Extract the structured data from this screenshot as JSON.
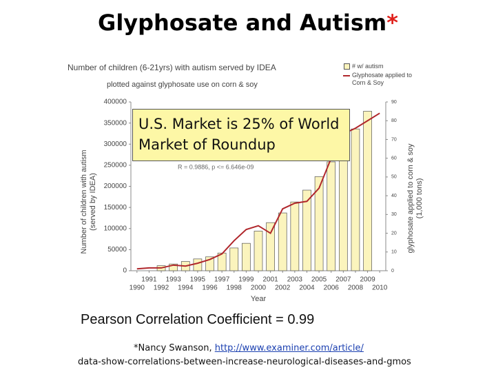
{
  "slide": {
    "title": "Glyphosate and Autism",
    "title_mark": "*",
    "callout": "U.S. Market is 25% of World Market of Roundup",
    "pearson": "Pearson Correlation Coefficient = 0.99",
    "citation_prefix": "*Nancy Swanson, ",
    "citation_link": "http://www.examiner.com/article/",
    "citation_line2": "data-show-correlations-between-increase-neurological-diseases-and-gmos"
  },
  "chart_data": {
    "type": "bar",
    "title": "Number of children (6-21yrs) with autism served by IDEA",
    "subtitle": "plotted against glyphosate use on corn & soy",
    "annotation": "R = 0.9886, p <= 6.646e-09",
    "xlabel": "Year",
    "ylabel": [
      "Number of children with autism",
      "(served by IDEA)"
    ],
    "y2label": [
      "glyphosate applied to corn & soy",
      "(1,000 tons)"
    ],
    "categories": [
      "1990",
      "1991",
      "1992",
      "1993",
      "1994",
      "1995",
      "1996",
      "1997",
      "1998",
      "1999",
      "2000",
      "2001",
      "2002",
      "2003",
      "2004",
      "2005",
      "2006",
      "2007",
      "2008",
      "2009",
      "2010"
    ],
    "series": [
      {
        "name": "# w/ autism",
        "type": "bar",
        "color": "#fbf4bd",
        "values": [
          null,
          null,
          12000,
          16000,
          22000,
          28000,
          33000,
          42000,
          54000,
          65000,
          94000,
          114000,
          137000,
          163000,
          191000,
          223000,
          258000,
          297000,
          336000,
          378000,
          null
        ]
      },
      {
        "name": "Glyphosate applied to Corn & Soy",
        "type": "line",
        "color": "#b0262b",
        "axis": "y2",
        "values": [
          1,
          1.5,
          1.5,
          3,
          2.5,
          4,
          6,
          9,
          16,
          22,
          24,
          20,
          33,
          36,
          37,
          44,
          60,
          73,
          76,
          80,
          84
        ]
      }
    ],
    "ylim": [
      0,
      400000
    ],
    "yticks": [
      0,
      50000,
      100000,
      150000,
      200000,
      250000,
      300000,
      350000,
      400000
    ],
    "y2lim": [
      0,
      90
    ],
    "y2ticks": [
      0,
      10,
      20,
      30,
      40,
      50,
      60,
      70,
      80,
      90
    ],
    "grid": false,
    "legend": "top-right"
  }
}
